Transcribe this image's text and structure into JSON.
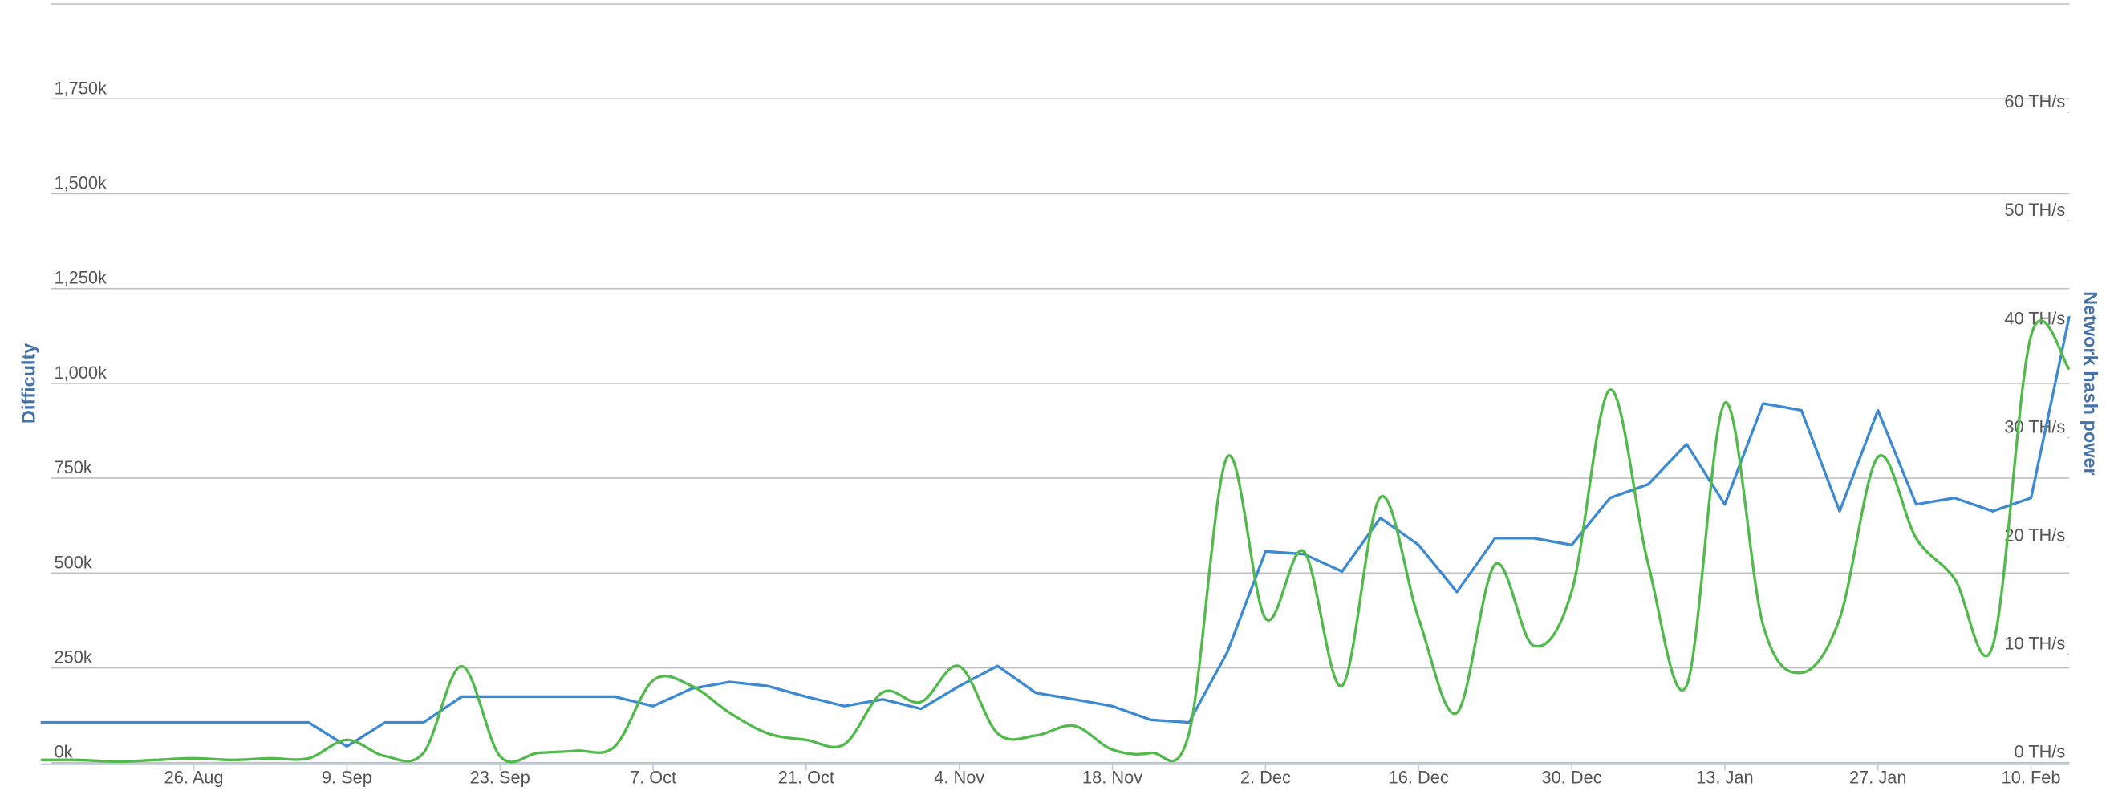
{
  "chart_data": {
    "type": "line",
    "ylabel": "Difficulty",
    "y2label": "Network hash power",
    "categories": [
      null,
      null,
      null,
      null,
      "26. Aug",
      null,
      null,
      null,
      "9. Sep",
      null,
      null,
      null,
      "23. Sep",
      null,
      null,
      null,
      "7. Oct",
      null,
      null,
      null,
      "21. Oct",
      null,
      null,
      null,
      "4. Nov",
      null,
      null,
      null,
      "18. Nov",
      null,
      null,
      null,
      "2. Dec",
      null,
      null,
      null,
      "16. Dec",
      null,
      null,
      null,
      "30. Dec",
      null,
      null,
      null,
      "13. Jan",
      null,
      null,
      null,
      "27. Jan",
      null,
      null,
      null,
      "10. Feb",
      null
    ],
    "ylim": [
      0,
      2000000
    ],
    "yticks": [
      {
        "value": 0,
        "label": "0k"
      },
      {
        "value": 250000,
        "label": "250k"
      },
      {
        "value": 500000,
        "label": "500k"
      },
      {
        "value": 750000,
        "label": "750k"
      },
      {
        "value": 1000000,
        "label": "1,000k"
      },
      {
        "value": 1250000,
        "label": "1,250k"
      },
      {
        "value": 1500000,
        "label": "1,500k"
      },
      {
        "value": 1750000,
        "label": "1,750k"
      },
      {
        "value": 2000000,
        "label": ""
      }
    ],
    "y2lim": [
      0,
      70
    ],
    "y2ticks": [
      {
        "value": 0,
        "label": "0 TH/s"
      },
      {
        "value": 10,
        "label": "10 TH/s"
      },
      {
        "value": 20,
        "label": "20 TH/s"
      },
      {
        "value": 30,
        "label": "30 TH/s"
      },
      {
        "value": 40,
        "label": "40 TH/s"
      },
      {
        "value": 50,
        "label": "50 TH/s"
      },
      {
        "value": 60,
        "label": "60 TH/s"
      }
    ],
    "grid": true,
    "series": [
      {
        "name": "Difficulty",
        "color": "#3d8ad1",
        "axis": "y",
        "values": [
          106000,
          106000,
          106000,
          106000,
          106000,
          106000,
          106000,
          106000,
          43000,
          106000,
          106000,
          174000,
          174000,
          174000,
          174000,
          174000,
          149000,
          195000,
          213000,
          202000,
          174000,
          149000,
          167000,
          142000,
          202000,
          255000,
          184000,
          167000,
          149000,
          113000,
          106000,
          291000,
          557000,
          550000,
          504000,
          645000,
          574000,
          450000,
          592000,
          592000,
          574000,
          698000,
          734000,
          840000,
          681000,
          947000,
          929000,
          663000,
          929000,
          681000,
          698000,
          663000,
          698000,
          1177000
        ]
      },
      {
        "name": "Network hash power",
        "color": "#52b94c",
        "axis": "y2",
        "values": [
          0.25,
          0.25,
          0.1,
          0.25,
          0.4,
          0.25,
          0.4,
          0.4,
          2.1,
          0.6,
          0.9,
          8.9,
          0.6,
          0.9,
          1.1,
          1.5,
          7.6,
          7.1,
          4.6,
          2.7,
          2.1,
          1.7,
          6.5,
          5.6,
          8.9,
          2.7,
          2.5,
          3.4,
          1.2,
          0.9,
          2.7,
          28.2,
          13.3,
          19.5,
          7.1,
          24.5,
          13.3,
          4.6,
          18.3,
          10.8,
          15.8,
          34.4,
          18.3,
          7.1,
          33.2,
          12.7,
          8.3,
          13.3,
          28.2,
          20.7,
          17.0,
          10.8,
          39.4,
          36.3
        ]
      }
    ]
  }
}
